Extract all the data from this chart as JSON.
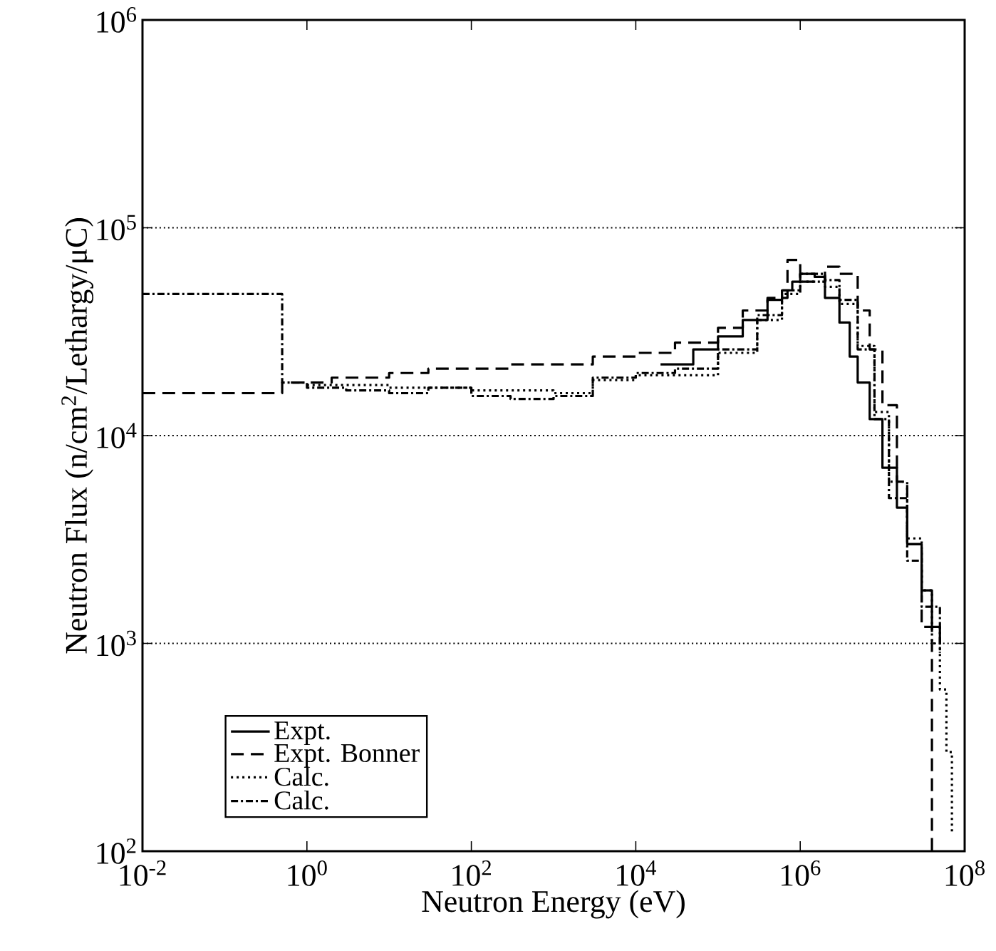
{
  "chart_data": {
    "type": "step",
    "xlabel": "Neutron Energy (eV)",
    "ylabel": "Neutron Flux (n/cm$^{2}$/Lethargy/μC)",
    "log": "xy",
    "grid": "y",
    "legend": "bottom left",
    "xlim": [
      0.01,
      100000000
    ],
    "ylim": [
      100,
      1000000
    ],
    "xticks": [
      {
        "value": 0.01,
        "label": "10$^{-2}$"
      },
      {
        "value": 1,
        "label": "10$^{0}$"
      },
      {
        "value": 100,
        "label": "10$^{2}$"
      },
      {
        "value": 10000,
        "label": "10$^{4}$"
      },
      {
        "value": 1000000,
        "label": "10$^{6}$"
      },
      {
        "value": 100000000,
        "label": "10$^{8}$"
      }
    ],
    "yticks": [
      {
        "value": 100,
        "label": "10$^{2}$"
      },
      {
        "value": 1000,
        "label": "10$^{3}$"
      },
      {
        "value": 10000,
        "label": "10$^{4}$"
      },
      {
        "value": 100000,
        "label": "10$^{5}$"
      },
      {
        "value": 1000000,
        "label": "10$^{6}$"
      }
    ],
    "series": [
      {
        "name": "Expt.",
        "color": "#000000",
        "line_style": "solid",
        "x": [
          20000,
          50000,
          100000,
          200000,
          400000,
          600000,
          800000,
          1000000,
          1500000,
          2000000,
          3000000,
          4000000,
          5000000,
          7000000,
          10000000,
          15000000,
          20000000,
          30000000,
          40000000,
          50000000
        ],
        "values": [
          22000,
          26000,
          30000,
          36000,
          45000,
          50000,
          55000,
          60000,
          58000,
          46000,
          35000,
          24000,
          18000,
          12000,
          7000,
          4500,
          3000,
          1800,
          1200,
          1000
        ]
      },
      {
        "name": "Expt. Bonner",
        "color": "#000000",
        "line_style": "dashed",
        "x": [
          0.01,
          0.5,
          2,
          10,
          30,
          100,
          300,
          1000,
          3000,
          10000,
          30000,
          100000,
          200000,
          400000,
          700000,
          1000000,
          2000000,
          3000000,
          5000000,
          7000000,
          10000000,
          15000000,
          20000000,
          30000000,
          40000000
        ],
        "values": [
          16000,
          18000,
          19000,
          20000,
          21000,
          21000,
          22000,
          22000,
          24000,
          25000,
          28000,
          33000,
          40000,
          46000,
          70000,
          55000,
          65000,
          60000,
          40000,
          26000,
          14000,
          6000,
          3000,
          1200,
          100
        ]
      },
      {
        "name": "Calc.",
        "color": "#000000",
        "line_style": "dotted",
        "x": [
          1,
          10,
          100,
          1000,
          3000,
          10000,
          100000,
          300000,
          600000,
          1000000,
          2000000,
          3000000,
          5000000,
          8000000,
          12000000,
          20000000,
          30000000,
          40000000,
          50000000,
          60000000,
          70000000
        ],
        "values": [
          17500,
          17000,
          16500,
          16000,
          18500,
          19500,
          25000,
          36000,
          48000,
          55000,
          52000,
          43000,
          27000,
          13000,
          6000,
          3200,
          1800,
          1000,
          600,
          300,
          120
        ]
      },
      {
        "name": "Calc.",
        "color": "#000000",
        "line_style": "dashdotted",
        "x": [
          0.01,
          0.5,
          1,
          3,
          10,
          30,
          100,
          300,
          1000,
          3000,
          10000,
          30000,
          100000,
          300000,
          600000,
          1000000,
          2000000,
          3000000,
          5000000,
          8000000,
          12000000,
          20000000,
          30000000,
          50000000
        ],
        "values": [
          48000,
          18000,
          17000,
          16500,
          16000,
          17000,
          15500,
          15000,
          15500,
          19000,
          20000,
          21000,
          26000,
          38000,
          50000,
          60000,
          56000,
          45000,
          26000,
          12000,
          5000,
          2500,
          1500,
          900
        ]
      }
    ]
  }
}
